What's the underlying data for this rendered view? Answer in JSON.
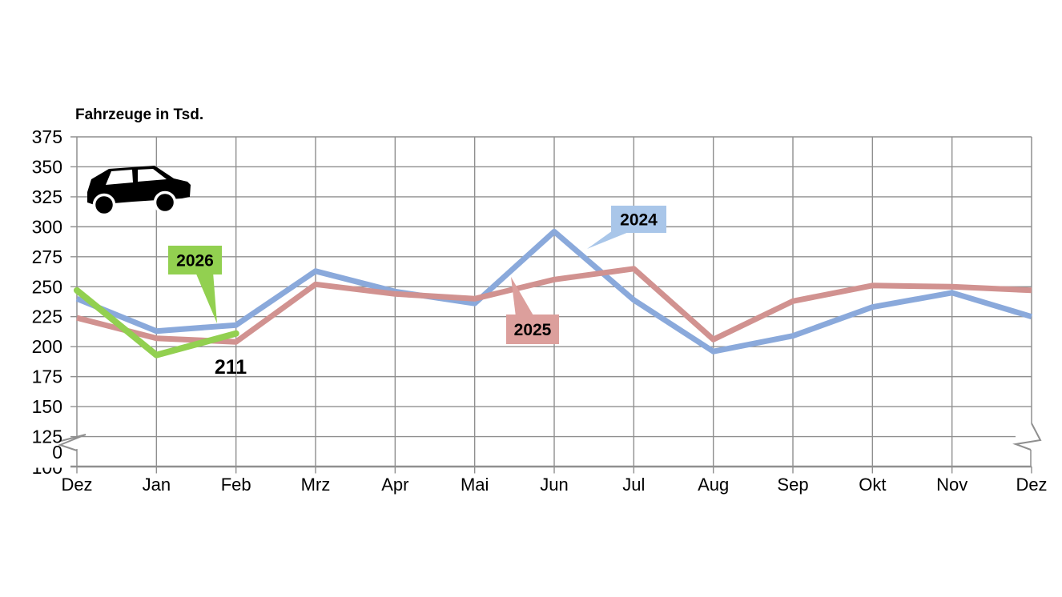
{
  "icons": {
    "car": "car-icon"
  },
  "chart_data": {
    "type": "line",
    "title": "Fahrzeuge in Tsd.",
    "categories": [
      "Dez",
      "Jan",
      "Feb",
      "Mrz",
      "Apr",
      "Mai",
      "Jun",
      "Jul",
      "Aug",
      "Sep",
      "Okt",
      "Nov",
      "Dez"
    ],
    "series": [
      {
        "name": "2024",
        "color": "#8AA9DB",
        "callout_fill": "#A9C6E9",
        "values": [
          240,
          213,
          218,
          263,
          246,
          236,
          296,
          239,
          196,
          209,
          233,
          245,
          225
        ]
      },
      {
        "name": "2025",
        "color": "#D19290",
        "callout_fill": "#DC9F9C",
        "values": [
          224,
          207,
          204,
          252,
          244,
          240,
          256,
          265,
          206,
          238,
          251,
          250,
          247
        ]
      },
      {
        "name": "2026",
        "color": "#92D050",
        "callout_fill": "#92D050",
        "values": [
          247,
          193,
          211,
          null,
          null,
          null,
          null,
          null,
          null,
          null,
          null,
          null,
          null
        ]
      }
    ],
    "ylim": [
      100,
      375
    ],
    "yticks": [
      375,
      350,
      325,
      300,
      275,
      250,
      225,
      200,
      175,
      150,
      125
    ],
    "y_break_labels": [
      "0",
      "100"
    ],
    "axis_break": true,
    "grid": true,
    "legend_position": "callouts-on-chart",
    "annotations": [
      {
        "text": "211",
        "series": "2026",
        "category": "Feb"
      }
    ],
    "axis_color": "#8F8F8F",
    "text_color": "#000000"
  }
}
